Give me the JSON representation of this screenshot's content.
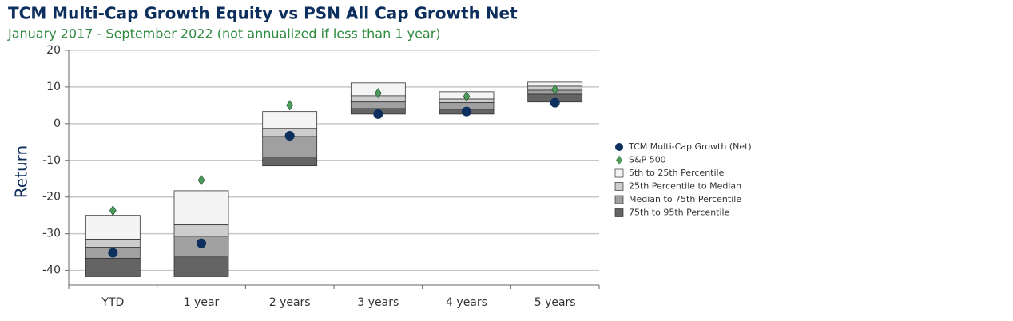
{
  "chart_data": {
    "type": "percentile_range",
    "title": "TCM Multi-Cap Growth Equity vs PSN All Cap Growth Net",
    "subtitle": "January 2017 - September 2022 (not annualized if less than 1 year)",
    "y_label": "Return",
    "categories": [
      "YTD",
      "1 year",
      "2 years",
      "3 years",
      "4 years",
      "5 years"
    ],
    "percentile_values": [
      [
        -25.0,
        -31.5,
        -33.7,
        -36.7,
        -41.7
      ],
      [
        -18.3,
        -27.6,
        -30.7,
        -36.1,
        -41.7
      ],
      [
        3.3,
        -1.3,
        -3.5,
        -9.1,
        -11.5
      ],
      [
        11.1,
        7.6,
        5.9,
        4.1,
        2.6
      ],
      [
        8.7,
        6.7,
        5.7,
        3.9,
        2.6
      ],
      [
        11.3,
        10.2,
        9.1,
        8.0,
        5.9
      ]
    ],
    "bands": [
      {
        "name": "5th to 25th Percentile",
        "color": "#f4f4f4"
      },
      {
        "name": "25th Percentile to Median",
        "color": "#cdcdcd"
      },
      {
        "name": "Median to 75th Percentile",
        "color": "#a0a0a0"
      },
      {
        "name": "75th to 95th Percentile",
        "color": "#646464"
      }
    ],
    "series": [
      {
        "name": "TCM Multi-Cap Growth (Net)",
        "color": "#0d2f5e",
        "marker": "circle",
        "values": [
          -35.2,
          -32.6,
          -3.3,
          2.6,
          3.3,
          5.7
        ]
      },
      {
        "name": "S&P 500",
        "color": "#4d9a5a",
        "marker": "diamond",
        "values": [
          -23.7,
          -15.4,
          5.0,
          8.3,
          7.4,
          9.3
        ]
      }
    ],
    "ylim": [
      -44,
      20.2
    ],
    "yticks": [
      20,
      10,
      0,
      -10,
      -20,
      -30,
      -40
    ],
    "grid": true
  }
}
